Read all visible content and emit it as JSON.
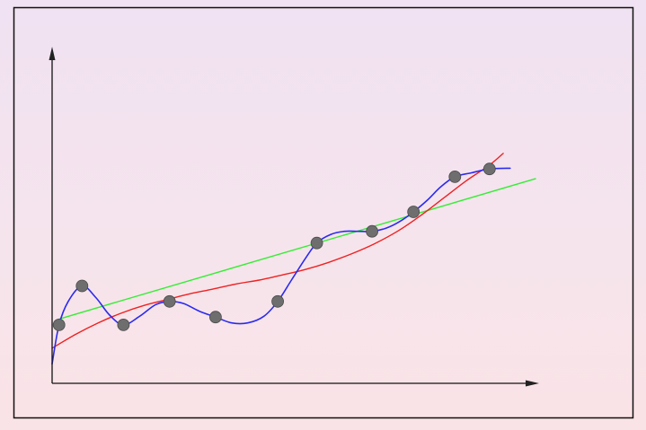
{
  "chart_data": {
    "type": "scatter",
    "title": "",
    "xlabel": "",
    "ylabel": "",
    "xlim": [
      0,
      10.5
    ],
    "ylim": [
      0,
      8.5
    ],
    "grid": false,
    "show_tick_labels": false,
    "points": {
      "x": [
        0.15,
        0.65,
        1.55,
        2.55,
        3.55,
        4.9,
        5.75,
        6.95,
        7.85,
        8.75,
        9.5
      ],
      "y": [
        1.5,
        2.5,
        1.5,
        2.1,
        1.7,
        2.1,
        3.6,
        3.9,
        4.4,
        5.3,
        5.5
      ],
      "color": "#6e6e6e"
    },
    "curves": [
      {
        "kind": "linear-fit",
        "color": "#33ee33",
        "x": [
          0.15,
          10.5
        ],
        "y": [
          1.65,
          5.25
        ]
      },
      {
        "kind": "smooth-fit",
        "color": "#ee2222",
        "x": [
          0.0,
          0.5,
          1.0,
          1.5,
          2.0,
          2.5,
          3.0,
          3.5,
          4.0,
          4.5,
          5.0,
          5.5,
          6.0,
          6.5,
          7.0,
          7.5,
          8.0,
          8.5,
          9.0,
          9.5,
          9.8
        ],
        "y": [
          0.9,
          1.25,
          1.55,
          1.8,
          2.0,
          2.15,
          2.3,
          2.42,
          2.55,
          2.65,
          2.78,
          2.92,
          3.1,
          3.32,
          3.58,
          3.9,
          4.3,
          4.75,
          5.2,
          5.6,
          5.9
        ]
      },
      {
        "kind": "interpolating-spline",
        "color": "#2b2bee",
        "x": [
          0.0,
          0.15,
          0.35,
          0.65,
          0.95,
          1.25,
          1.55,
          1.9,
          2.25,
          2.55,
          2.85,
          3.2,
          3.55,
          3.9,
          4.25,
          4.6,
          4.9,
          5.2,
          5.5,
          5.75,
          6.05,
          6.35,
          6.65,
          6.95,
          7.25,
          7.55,
          7.85,
          8.15,
          8.45,
          8.75,
          9.1,
          9.5,
          9.95
        ],
        "y": [
          0.5,
          1.5,
          2.1,
          2.5,
          2.2,
          1.75,
          1.5,
          1.72,
          2.02,
          2.1,
          2.05,
          1.85,
          1.7,
          1.55,
          1.55,
          1.72,
          2.1,
          2.65,
          3.2,
          3.6,
          3.82,
          3.9,
          3.9,
          3.9,
          3.98,
          4.15,
          4.4,
          4.7,
          5.05,
          5.3,
          5.4,
          5.5,
          5.52
        ]
      }
    ]
  }
}
